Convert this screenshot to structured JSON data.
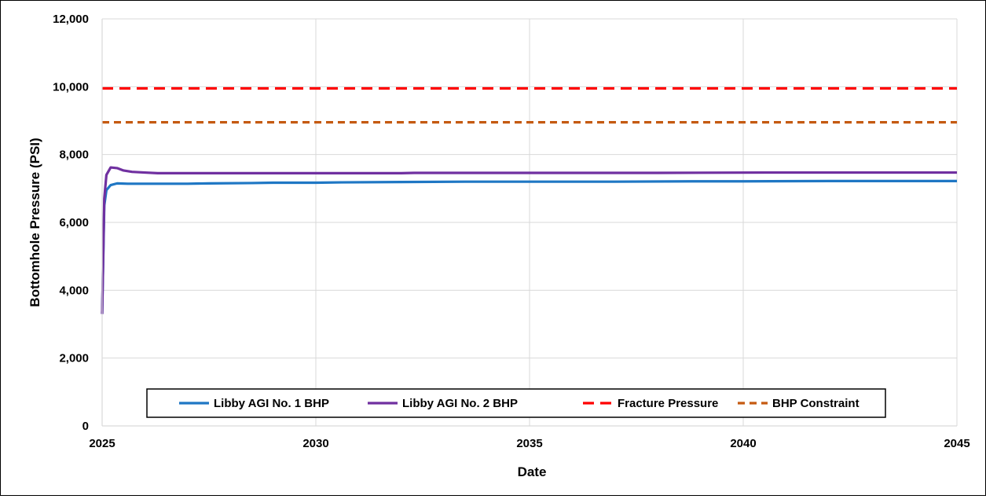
{
  "chart_data": {
    "type": "line",
    "title": "",
    "xlabel": "Date",
    "ylabel": "Bottomhole Pressure (PSI)",
    "xlim": [
      2025,
      2045
    ],
    "ylim": [
      0,
      12000
    ],
    "x_ticks": [
      "2025",
      "2030",
      "2035",
      "2040",
      "2045"
    ],
    "y_ticks": [
      "0",
      "2,000",
      "4,000",
      "6,000",
      "8,000",
      "10,000",
      "12,000"
    ],
    "grid": true,
    "legend_position": "bottom-center inside plot",
    "series": [
      {
        "name": "Libby AGI No. 1 BHP",
        "color": "#1f77c4",
        "style": "solid",
        "x": [
          2025.0,
          2025.05,
          2025.1,
          2025.2,
          2025.35,
          2025.6,
          2026.0,
          2027.0,
          2027.5,
          2028.5,
          2029.0,
          2030.0,
          2030.6,
          2032.0,
          2033.5,
          2035.0,
          2037.0,
          2038.8,
          2040.0,
          2042.0,
          2045.0
        ],
        "y": [
          3300,
          6500,
          6950,
          7100,
          7150,
          7140,
          7140,
          7140,
          7150,
          7160,
          7170,
          7170,
          7180,
          7190,
          7200,
          7200,
          7200,
          7210,
          7210,
          7220,
          7220
        ]
      },
      {
        "name": "Libby AGI No. 2 BHP",
        "color": "#7030a0",
        "style": "solid",
        "x": [
          2025.0,
          2025.05,
          2025.1,
          2025.2,
          2025.35,
          2025.5,
          2025.7,
          2026.0,
          2026.3,
          2027.0,
          2028.0,
          2030.0,
          2032.0,
          2032.3,
          2035.0,
          2038.0,
          2040.5,
          2042.0,
          2045.0
        ],
        "y": [
          3300,
          6700,
          7400,
          7620,
          7600,
          7530,
          7490,
          7470,
          7450,
          7450,
          7450,
          7450,
          7450,
          7460,
          7460,
          7460,
          7470,
          7470,
          7470
        ]
      },
      {
        "name": "Fracture Pressure",
        "color": "#ff0000",
        "style": "dashed",
        "x": [
          2025,
          2045
        ],
        "y": [
          9950,
          9950
        ]
      },
      {
        "name": "BHP Constraint",
        "color": "#c55a11",
        "style": "dashed",
        "x": [
          2025,
          2045
        ],
        "y": [
          8950,
          8950
        ]
      }
    ]
  }
}
